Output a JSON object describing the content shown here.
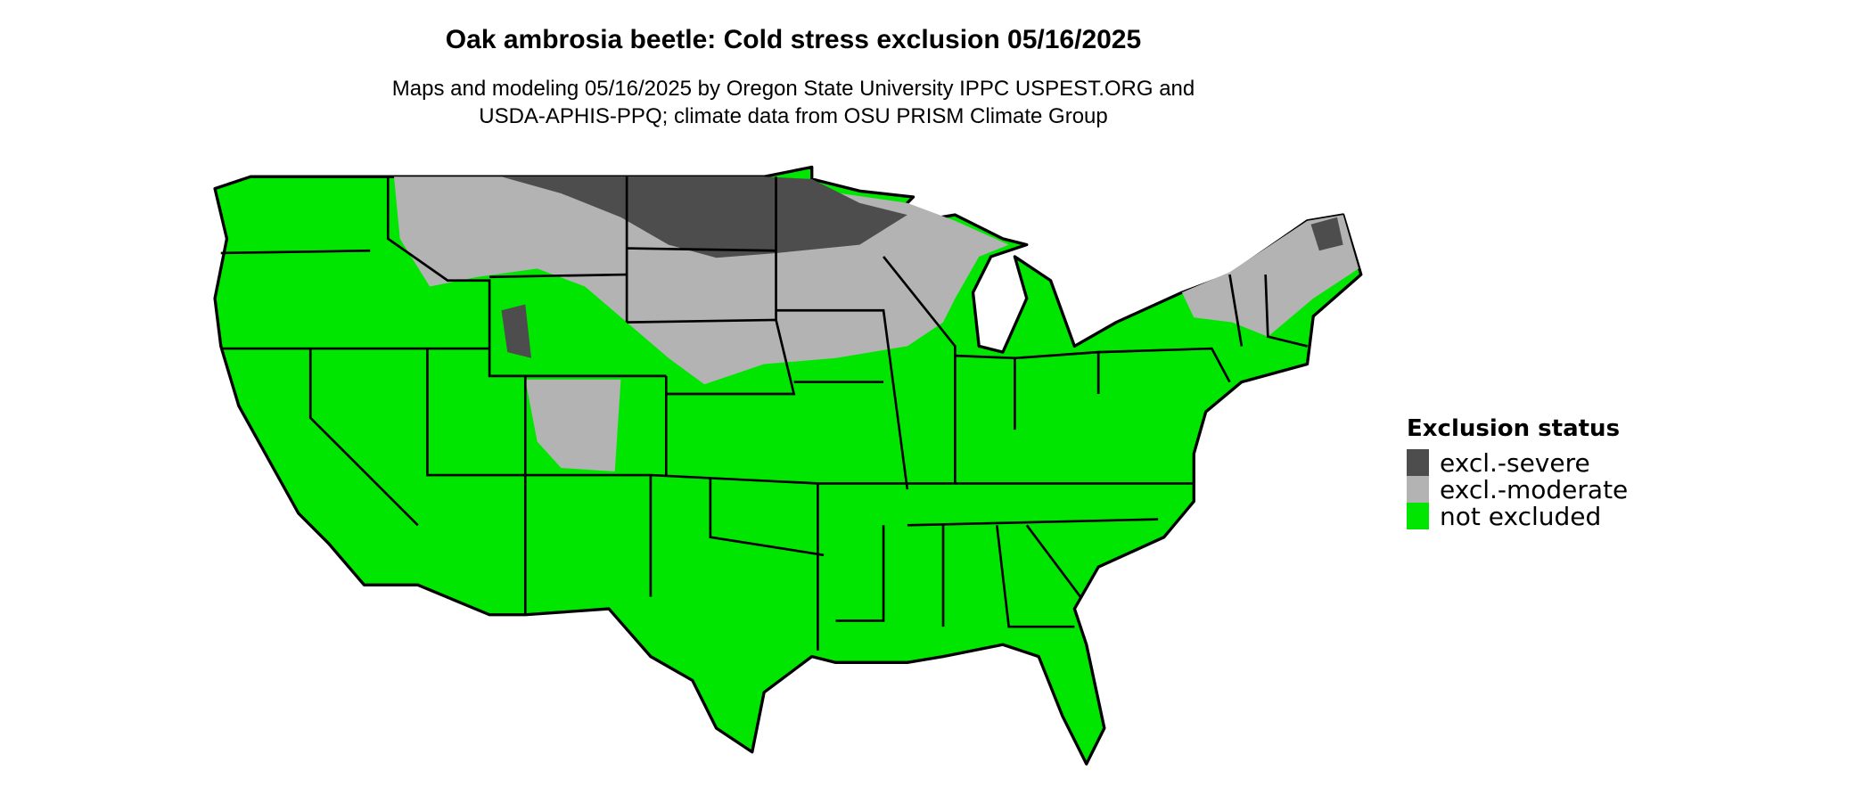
{
  "title": "Oak ambrosia beetle: Cold stress exclusion 05/16/2025",
  "subtitle_line1": "Maps and modeling 05/16/2025 by Oregon State University IPPC USPEST.ORG and",
  "subtitle_line2": "USDA-APHIS-PPQ; climate data from OSU PRISM Climate Group",
  "legend": {
    "title": "Exclusion status",
    "items": [
      {
        "label": "excl.-severe",
        "color": "#4d4d4d"
      },
      {
        "label": "excl.-moderate",
        "color": "#b3b3b3"
      },
      {
        "label": "not excluded",
        "color": "#00e600"
      }
    ]
  }
}
